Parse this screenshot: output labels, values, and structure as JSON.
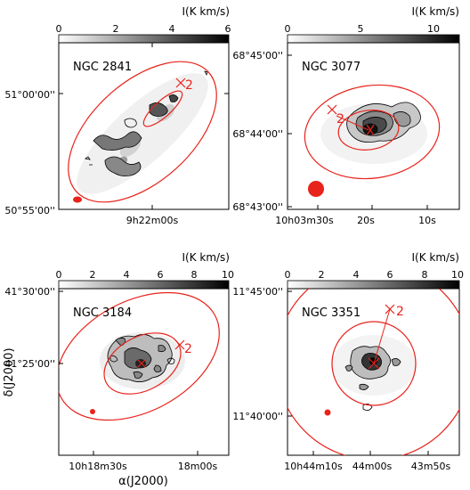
{
  "colorbar_title": "I(K km/s)",
  "axis_labels": {
    "y": "δ(J2000)",
    "x": "α(J2000)"
  },
  "panels": [
    {
      "name": "NGC 2841",
      "cb_ticks": [
        "0",
        "2",
        "4",
        "6"
      ],
      "y_ticks": [
        "51°00'00''",
        "50°55'00''"
      ],
      "x_ticks": [
        "9h22m00s"
      ],
      "marker": "2"
    },
    {
      "name": "NGC 3077",
      "cb_ticks": [
        "0",
        "5",
        "10"
      ],
      "y_ticks": [
        "68°45'00''",
        "68°44'00''",
        "68°43'00''"
      ],
      "x_ticks": [
        "10h03m30s",
        "20s",
        "10s"
      ],
      "marker": "2"
    },
    {
      "name": "NGC 3184",
      "cb_ticks": [
        "0",
        "2",
        "4",
        "6",
        "8",
        "10"
      ],
      "y_ticks": [
        "41°30'00''",
        "41°25'00''"
      ],
      "x_ticks": [
        "10h18m30s",
        "18m00s"
      ],
      "marker": "2"
    },
    {
      "name": "NGC 3351",
      "cb_ticks": [
        "0",
        "2",
        "4",
        "6",
        "8",
        "10"
      ],
      "y_ticks": [
        "11°45'00''",
        "11°40'00''"
      ],
      "x_ticks": [
        "10h44m10s",
        "44m00s",
        "43m50s"
      ],
      "marker": "2"
    }
  ],
  "colors": {
    "ellipse": "#e8231c",
    "contour": "#000000"
  }
}
